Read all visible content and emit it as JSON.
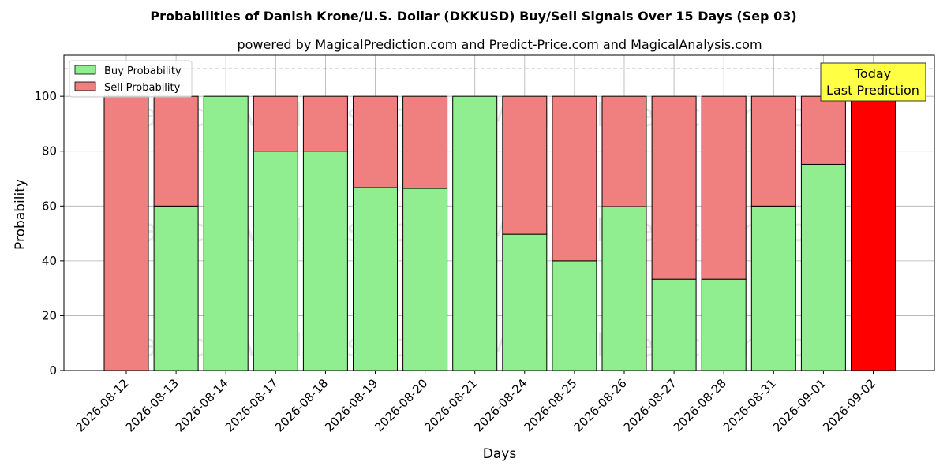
{
  "chart_data": {
    "type": "bar",
    "stacked": true,
    "title": "Probabilities of Danish Krone/U.S. Dollar (DKKUSD) Buy/Sell Signals Over 15 Days (Sep 03)",
    "subtitle": "powered by MagicalPrediction.com and Predict-Price.com and MagicalAnalysis.com",
    "xlabel": "Days",
    "ylabel": "Probability",
    "ylim": [
      0,
      115
    ],
    "yticks": [
      0,
      20,
      40,
      60,
      80,
      100
    ],
    "grid": true,
    "legend_position": "top-left",
    "reference_line": 110,
    "categories": [
      "2026-08-12",
      "2026-08-13",
      "2026-08-14",
      "2026-08-17",
      "2026-08-18",
      "2026-08-19",
      "2026-08-20",
      "2026-08-21",
      "2026-08-24",
      "2026-08-25",
      "2026-08-26",
      "2026-08-27",
      "2026-08-28",
      "2026-08-31",
      "2026-09-01",
      "2026-09-02"
    ],
    "series": [
      {
        "name": "Buy Probability",
        "color": "#90ee90",
        "values": [
          0,
          60,
          100,
          80,
          80,
          66.7,
          66.4,
          100,
          49.7,
          40,
          59.8,
          33.3,
          33.3,
          60,
          75.2,
          0
        ]
      },
      {
        "name": "Sell Probability",
        "color": "#f08080",
        "values": [
          100,
          40,
          0,
          20,
          20,
          33.3,
          33.6,
          0,
          50.3,
          60,
          40.2,
          66.7,
          66.7,
          40,
          24.8,
          0
        ]
      }
    ],
    "highlight": {
      "category": "2026-09-02",
      "value": 100,
      "color": "#ff0000"
    },
    "annotation": {
      "line1": "Today",
      "line2": "Last Prediction",
      "bg": "#ffff44"
    },
    "watermarks": [
      "MagicalAnalysis.com",
      "MagicalPrediction.com"
    ]
  }
}
